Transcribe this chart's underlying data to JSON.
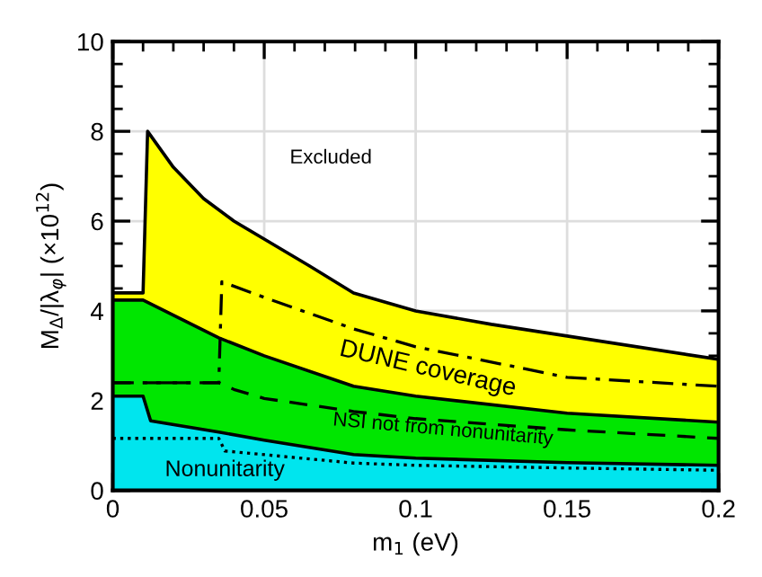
{
  "chart_data": {
    "type": "area",
    "xlabel": "m$_{1}$ (eV)",
    "ylabel": "M$_{Δ}$/|λ$_{φ}$| (×10$^{12}$)",
    "xlim": [
      0,
      0.2
    ],
    "ylim": [
      0,
      10
    ],
    "xticks": [
      0,
      0.05,
      0.1,
      0.15,
      0.2
    ],
    "yticks": [
      0,
      2,
      4,
      6,
      8,
      10
    ],
    "grid": true,
    "series": [
      {
        "color": "#ffff00",
        "x": [
          0,
          0.01,
          0.0115,
          0.02,
          0.03,
          0.04,
          0.05,
          0.065,
          0.0795,
          0.1,
          0.125,
          0.15,
          0.2
        ],
        "values": [
          4.4,
          4.4,
          8.0,
          7.2,
          6.5,
          6.0,
          5.6,
          5.0,
          4.4,
          4.0,
          3.7,
          3.44,
          2.92
        ]
      },
      {
        "color": "#00e600",
        "x": [
          0,
          0.01,
          0.035,
          0.05,
          0.0795,
          0.1,
          0.15,
          0.2
        ],
        "values": [
          4.24,
          4.24,
          3.4,
          3.0,
          2.32,
          2.1,
          1.72,
          1.52
        ]
      },
      {
        "color": "#00e5ee",
        "x": [
          0,
          0.01,
          0.0125,
          0.035,
          0.05,
          0.0795,
          0.1,
          0.15,
          0.2
        ],
        "values": [
          2.1,
          2.1,
          1.55,
          1.3,
          1.12,
          0.8,
          0.72,
          0.62,
          0.56
        ]
      },
      {
        "type": "line",
        "line_style": "dashdot",
        "color": "#000000",
        "x": [
          0,
          0.035,
          0.036,
          0.05,
          0.0795,
          0.1,
          0.15,
          0.2
        ],
        "values": [
          2.4,
          2.4,
          4.65,
          4.3,
          3.6,
          3.2,
          2.52,
          2.32
        ]
      },
      {
        "type": "line",
        "line_style": "dashed",
        "color": "#000000",
        "x": [
          0,
          0.035,
          0.04,
          0.05,
          0.0795,
          0.1,
          0.15,
          0.2
        ],
        "values": [
          2.4,
          2.4,
          2.25,
          2.05,
          1.76,
          1.6,
          1.35,
          1.16
        ]
      },
      {
        "type": "line",
        "line_style": "dotted",
        "color": "#000000",
        "x": [
          0,
          0.035,
          0.037,
          0.0795,
          0.1,
          0.15,
          0.2
        ],
        "values": [
          1.16,
          1.16,
          0.88,
          0.61,
          0.56,
          0.5,
          0.45
        ]
      }
    ],
    "annotations": [
      "Excluded",
      "DUNE coverage",
      "NSI not from nonunitarity",
      "Nonunitarity"
    ]
  }
}
